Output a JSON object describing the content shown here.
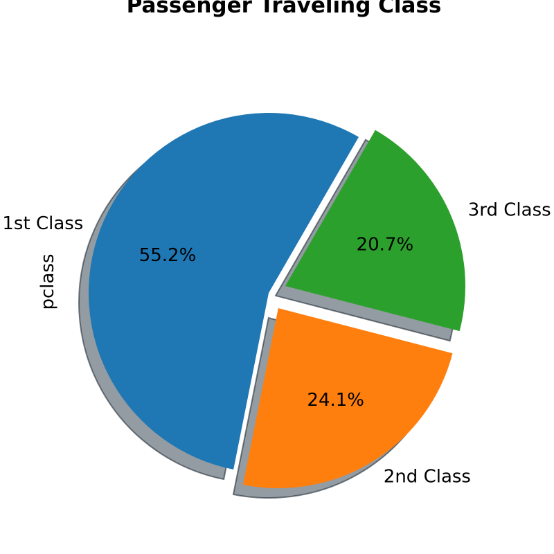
{
  "chart_data": {
    "type": "pie",
    "title": "Passenger Traveling Class",
    "ylabel": "pclass",
    "slices": [
      {
        "label": "1st Class",
        "value": 55.2,
        "pct_label": "55.2%",
        "color": "#1f77b4",
        "explode": 0.0
      },
      {
        "label": "2nd Class",
        "value": 24.1,
        "pct_label": "24.1%",
        "color": "#ff7f0e",
        "explode": 0.1
      },
      {
        "label": "3rd Class",
        "value": 20.7,
        "pct_label": "20.7%",
        "color": "#2ca02c",
        "explode": 0.1
      }
    ],
    "shadow": true,
    "start_angle_deg": 60
  }
}
